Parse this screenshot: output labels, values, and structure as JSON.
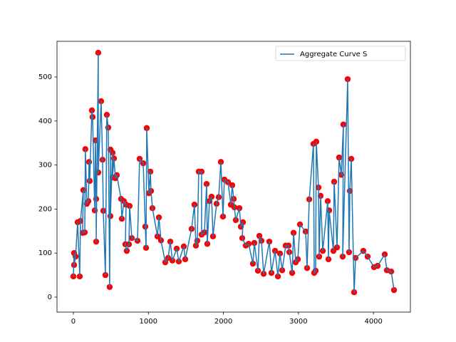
{
  "chart_data": {
    "type": "line",
    "series": [
      {
        "name": "Aggregate Curve S",
        "color": "#1f77b4",
        "marker_color": "red",
        "x": [
          0,
          10,
          10,
          30,
          57,
          85,
          95,
          133,
          123,
          152,
          160,
          180,
          200,
          209,
          218,
          247,
          256,
          285,
          294,
          304,
          304,
          332,
          332,
          370,
          389,
          399,
          427,
          446,
          465,
          484,
          494,
          494,
          522,
          522,
          541,
          560,
          579,
          636,
          646,
          674,
          703,
          693,
          712,
          741,
          750,
          779,
          855,
          883,
          931,
          959,
          969,
          978,
          1007,
          1026,
          1035,
          1054,
          1121,
          1140,
          1168,
          1225,
          1263,
          1292,
          1320,
          1377,
          1405,
          1472,
          1491,
          1576,
          1614,
          1633,
          1652,
          1671,
          1709,
          1709,
          1747,
          1776,
          1785,
          1814,
          1842,
          1861,
          1909,
          1937,
          1966,
          1994,
          2013,
          2061,
          2099,
          2118,
          2137,
          2146,
          2165,
          2213,
          2232,
          2260,
          2251,
          2298,
          2336,
          2393,
          2412,
          2460,
          2479,
          2507,
          2536,
          2612,
          2640,
          2688,
          2726,
          2754,
          2783,
          2830,
          2868,
          2878,
          2916,
          2935,
          2963,
          2992,
          3020,
          3096,
          3115,
          3144,
          3200,
          3210,
          3229,
          3238,
          3267,
          3276,
          3295,
          3324,
          3390,
          3400,
          3409,
          3466,
          3476,
          3514,
          3542,
          3571,
          3599,
          3590,
          3656,
          3675,
          3685,
          3704,
          3742,
          3761,
          3865,
          3922,
          4007,
          4055,
          4150,
          4179,
          4236,
          4274
        ],
        "values": [
          47,
          100,
          73,
          92,
          170,
          47,
          173,
          243,
          146,
          147,
          336,
          212,
          218,
          307,
          264,
          424,
          409,
          197,
          356,
          223,
          126,
          555,
          283,
          445,
          312,
          196,
          50,
          414,
          385,
          23,
          335,
          184,
          328,
          272,
          315,
          270,
          277,
          223,
          178,
          218,
          210,
          120,
          105,
          120,
          207,
          134,
          128,
          314,
          304,
          160,
          112,
          384,
          236,
          285,
          241,
          202,
          138,
          181,
          129,
          79,
          89,
          126,
          83,
          110,
          81,
          115,
          86,
          155,
          210,
          117,
          128,
          285,
          285,
          142,
          147,
          257,
          121,
          218,
          228,
          138,
          212,
          227,
          307,
          183,
          267,
          261,
          210,
          254,
          223,
          204,
          175,
          202,
          160,
          170,
          134,
          117,
          121,
          76,
          123,
          60,
          139,
          128,
          53,
          126,
          55,
          105,
          47,
          99,
          61,
          117,
          117,
          102,
          55,
          146,
          79,
          86,
          165,
          149,
          66,
          222,
          348,
          55,
          60,
          353,
          249,
          92,
          230,
          105,
          218,
          86,
          197,
          105,
          262,
          113,
          317,
          278,
          392,
          92,
          495,
          102,
          241,
          314,
          11,
          89,
          105,
          92,
          68,
          71,
          97,
          61,
          58,
          16
        ]
      }
    ],
    "xlim": [
      -218,
      4492
    ],
    "ylim": [
      -34,
      581
    ],
    "xticks": [
      0,
      1000,
      2000,
      3000,
      4000
    ],
    "yticks": [
      0,
      100,
      200,
      300,
      400,
      500
    ],
    "legend": "upper right"
  }
}
